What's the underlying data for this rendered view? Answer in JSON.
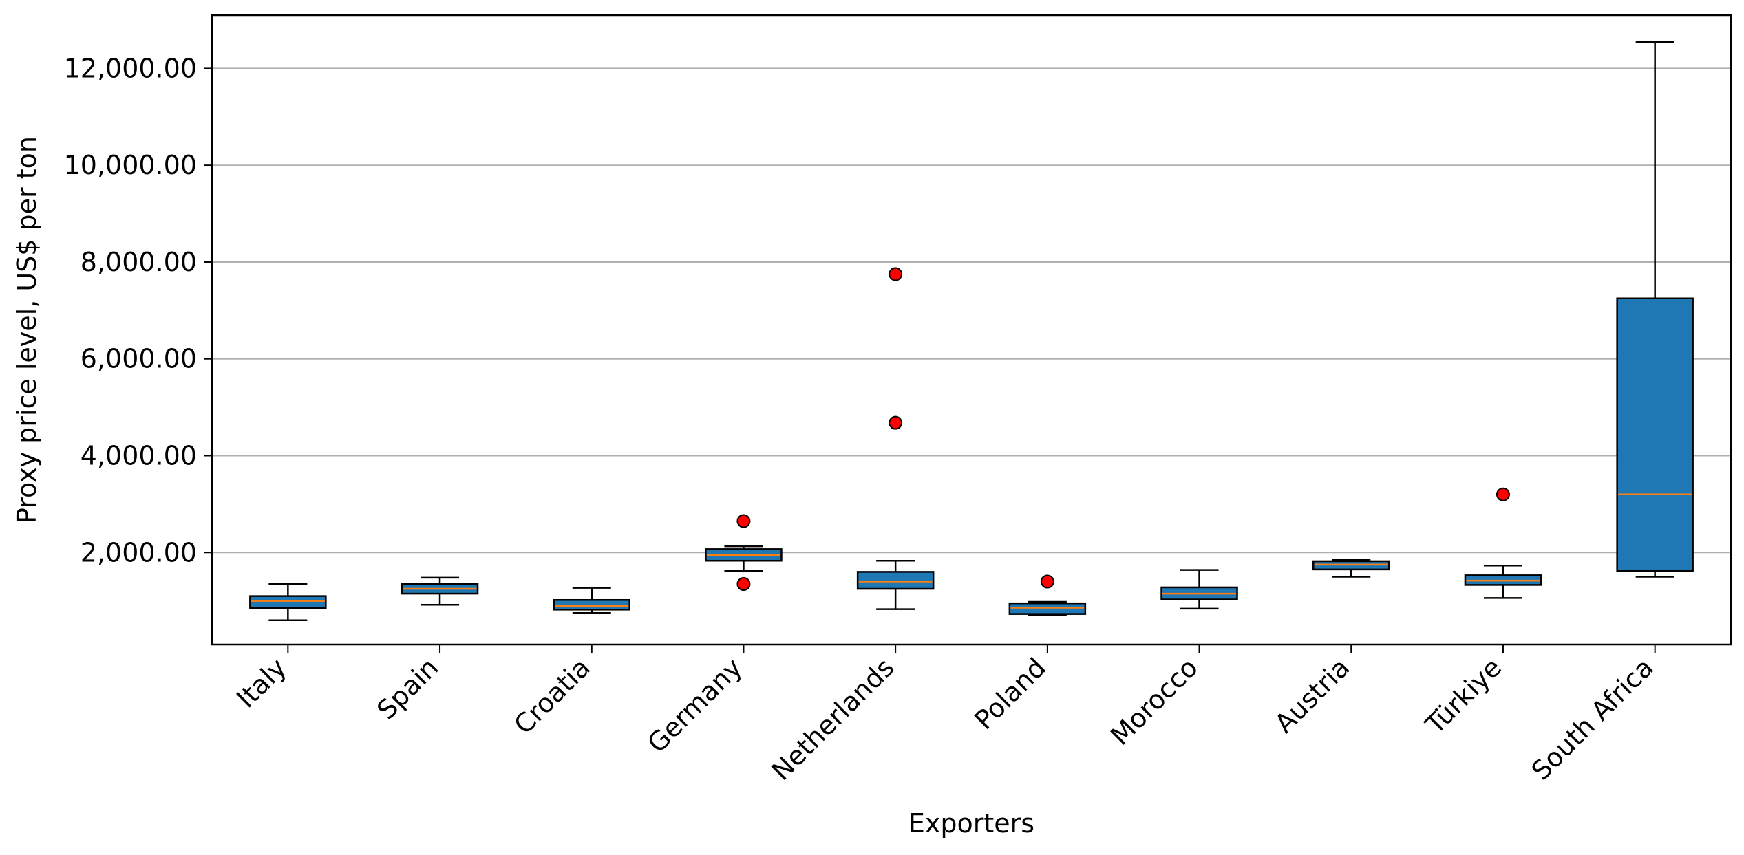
{
  "chart_data": {
    "type": "boxplot",
    "xlabel": "Exporters",
    "ylabel": "Proxy price level, US$ per ton",
    "ylim": [
      100,
      13100
    ],
    "yticks": [
      2000,
      4000,
      6000,
      8000,
      10000,
      12000
    ],
    "ytick_labels": [
      "2,000.00",
      "4,000.00",
      "6,000.00",
      "8,000.00",
      "10,000.00",
      "12,000.00"
    ],
    "grid": "y-major",
    "box_color": "#1f77b4",
    "median_color": "#ff7f0e",
    "flier_color": "#ff0000",
    "categories": [
      "Italy",
      "Spain",
      "Croatia",
      "Germany",
      "Netherlands",
      "Poland",
      "Morocco",
      "Austria",
      "Türkiye",
      "South Africa"
    ],
    "boxes": [
      {
        "whislo": 600,
        "q1": 850,
        "med": 1000,
        "q3": 1100,
        "whishi": 1350,
        "fliers": []
      },
      {
        "whislo": 920,
        "q1": 1150,
        "med": 1250,
        "q3": 1350,
        "whishi": 1480,
        "fliers": []
      },
      {
        "whislo": 750,
        "q1": 820,
        "med": 900,
        "q3": 1020,
        "whishi": 1270,
        "fliers": []
      },
      {
        "whislo": 1620,
        "q1": 1830,
        "med": 1950,
        "q3": 2070,
        "whishi": 2130,
        "fliers": [
          2650,
          1350
        ]
      },
      {
        "whislo": 830,
        "q1": 1250,
        "med": 1400,
        "q3": 1600,
        "whishi": 1830,
        "fliers": [
          7750,
          4680
        ]
      },
      {
        "whislo": 700,
        "q1": 730,
        "med": 860,
        "q3": 950,
        "whishi": 980,
        "fliers": [
          1400
        ]
      },
      {
        "whislo": 840,
        "q1": 1030,
        "med": 1150,
        "q3": 1280,
        "whishi": 1640,
        "fliers": []
      },
      {
        "whislo": 1500,
        "q1": 1650,
        "med": 1750,
        "q3": 1820,
        "whishi": 1850,
        "fliers": []
      },
      {
        "whislo": 1060,
        "q1": 1330,
        "med": 1420,
        "q3": 1530,
        "whishi": 1730,
        "fliers": [
          3200
        ]
      },
      {
        "whislo": 1500,
        "q1": 1620,
        "med": 3200,
        "q3": 7250,
        "whishi": 12550,
        "fliers": []
      }
    ]
  }
}
